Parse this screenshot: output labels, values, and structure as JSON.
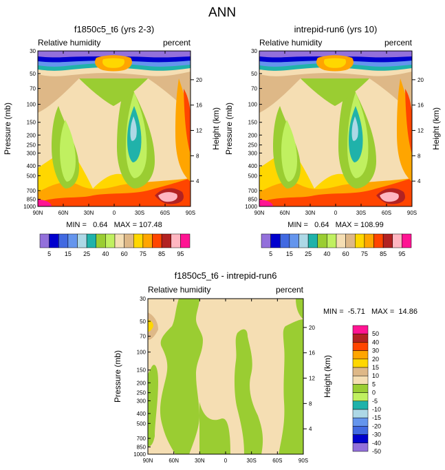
{
  "figure": {
    "main_title": "ANN"
  },
  "chart_data": [
    {
      "type": "heatmap",
      "title": "f1850c5_t6 (yrs 2-3)",
      "left_string": "Relative humidity",
      "right_string": "percent",
      "ylabel": "Pressure (mb)",
      "ylabel_right": "Height (km)",
      "x_ticks": [
        "90N",
        "60N",
        "30N",
        "0",
        "30S",
        "60S",
        "90S"
      ],
      "y_ticks": [
        30,
        50,
        70,
        100,
        150,
        200,
        250,
        300,
        400,
        500,
        700,
        850,
        1000
      ],
      "height_ticks": [
        20,
        16,
        12,
        8,
        4
      ],
      "stats": "MIN =   0.64   MAX = 107.48",
      "levels": [
        5,
        10,
        15,
        20,
        25,
        30,
        40,
        50,
        60,
        70,
        75,
        80,
        85,
        90,
        95
      ],
      "label_levels": [
        5,
        15,
        25,
        40,
        60,
        75,
        85,
        95
      ],
      "colors": [
        "#9370db",
        "#0000cd",
        "#4169e1",
        "#6495ed",
        "#add8e6",
        "#20b2aa",
        "#9acd32",
        "#c0f060",
        "#f5deb3",
        "#deb887",
        "#ffd700",
        "#ffa500",
        "#ff4500",
        "#b22222",
        "#ffb6c1",
        "#ff1493"
      ]
    },
    {
      "type": "heatmap",
      "title": "intrepid-run6 (yrs 10)",
      "left_string": "Relative humidity",
      "right_string": "percent",
      "ylabel": "Pressure (mb)",
      "ylabel_right": "Height (km)",
      "x_ticks": [
        "90N",
        "60N",
        "30N",
        "0",
        "30S",
        "60S",
        "90S"
      ],
      "y_ticks": [
        30,
        50,
        70,
        100,
        150,
        200,
        250,
        300,
        400,
        500,
        700,
        850,
        1000
      ],
      "height_ticks": [
        20,
        16,
        12,
        8,
        4
      ],
      "stats": "MIN =   0.64   MAX = 108.99",
      "levels": [
        5,
        10,
        15,
        20,
        25,
        30,
        40,
        50,
        60,
        70,
        75,
        80,
        85,
        90,
        95
      ],
      "label_levels": [
        5,
        15,
        25,
        40,
        60,
        75,
        85,
        95
      ],
      "colors": [
        "#9370db",
        "#0000cd",
        "#4169e1",
        "#6495ed",
        "#add8e6",
        "#20b2aa",
        "#9acd32",
        "#c0f060",
        "#f5deb3",
        "#deb887",
        "#ffd700",
        "#ffa500",
        "#ff4500",
        "#b22222",
        "#ffb6c1",
        "#ff1493"
      ]
    },
    {
      "type": "heatmap",
      "title": "f1850c5_t6 - intrepid-run6",
      "left_string": "Relative humidity",
      "right_string": "percent",
      "ylabel": "Pressure (mb)",
      "ylabel_right": "Height (km)",
      "x_ticks": [
        "90N",
        "60N",
        "30N",
        "0",
        "30S",
        "60S",
        "90S"
      ],
      "y_ticks": [
        30,
        50,
        70,
        100,
        150,
        200,
        250,
        300,
        400,
        500,
        700,
        850,
        1000
      ],
      "height_ticks": [
        20,
        16,
        12,
        8,
        4
      ],
      "stats": "MIN =  -5.71   MAX =  14.86",
      "levels": [
        50,
        40,
        30,
        20,
        15,
        10,
        5,
        0,
        -5,
        -10,
        -15,
        -20,
        -30,
        -40,
        -50
      ],
      "colors": [
        "#ff1493",
        "#b22222",
        "#ff4500",
        "#ffa500",
        "#ffd700",
        "#deb887",
        "#f5deb3",
        "#9acd32",
        "#c0f060",
        "#20b2aa",
        "#add8e6",
        "#6495ed",
        "#4169e1",
        "#0000cd",
        "#9370db"
      ]
    }
  ]
}
